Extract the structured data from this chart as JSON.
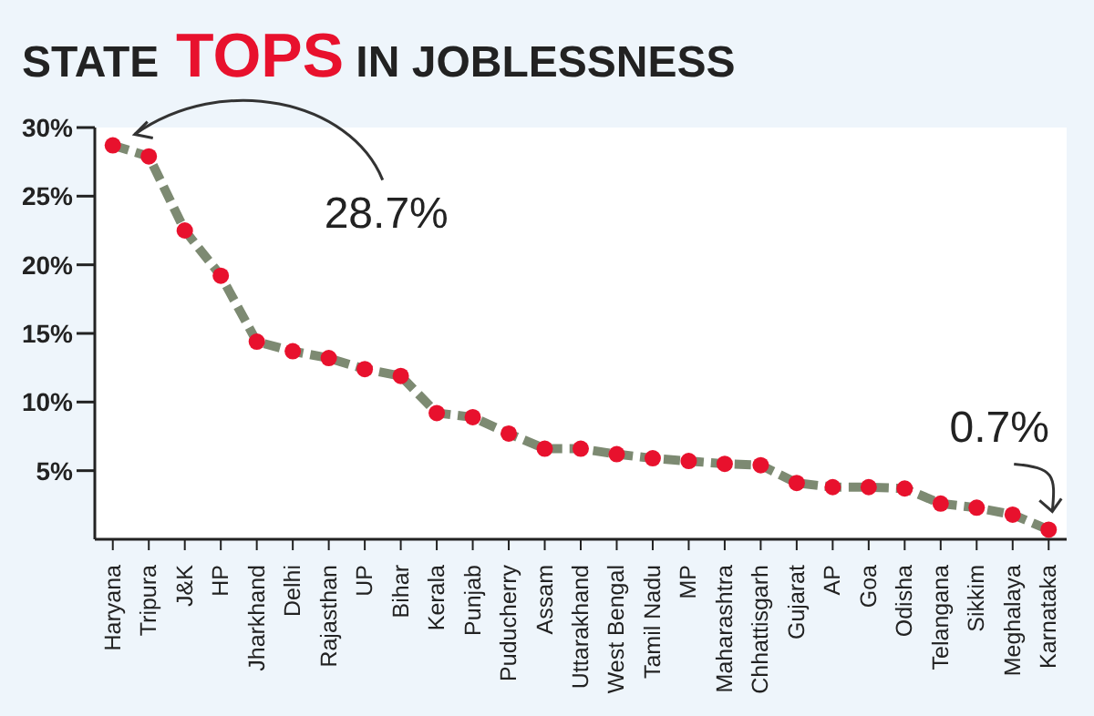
{
  "chart_data": {
    "type": "line",
    "title": "STATE TOPS IN JOBLESSNESS",
    "categories": [
      "Haryana",
      "Tripura",
      "J&K",
      "HP",
      "Jharkhand",
      "Delhi",
      "Rajasthan",
      "UP",
      "Bihar",
      "Kerala",
      "Punjab",
      "Puducherry",
      "Assam",
      "Uttarakhand",
      "West Bengal",
      "Tamil Nadu",
      "MP",
      "Maharashtra",
      "Chhattisgarh",
      "Gujarat",
      "AP",
      "Goa",
      "Odisha",
      "Telangana",
      "Sikkim",
      "Meghalaya",
      "Karnataka"
    ],
    "series": [
      {
        "color": "#7d8a72",
        "values": [
          28.7,
          27.9,
          22.5,
          19.2,
          14.4,
          13.7,
          13.2,
          12.4,
          11.9,
          9.2,
          8.9,
          7.7,
          6.6,
          6.6,
          6.2,
          5.9,
          5.7,
          5.5,
          5.4,
          4.1,
          3.8,
          3.8,
          3.7,
          2.6,
          2.3,
          1.8,
          0.7
        ]
      }
    ],
    "ylim": [
      0,
      30
    ],
    "yticks": [
      {
        "value": 5,
        "label": "5%"
      },
      {
        "value": 10,
        "label": "10%"
      },
      {
        "value": 15,
        "label": "15%"
      },
      {
        "value": 20,
        "label": "20%"
      },
      {
        "value": 25,
        "label": "25%"
      },
      {
        "value": 30,
        "label": "30%"
      }
    ],
    "annotations": [
      "28.7%",
      "0.7%"
    ],
    "marker": "circle",
    "line_style": "dashed",
    "grid": false,
    "legend": false
  }
}
